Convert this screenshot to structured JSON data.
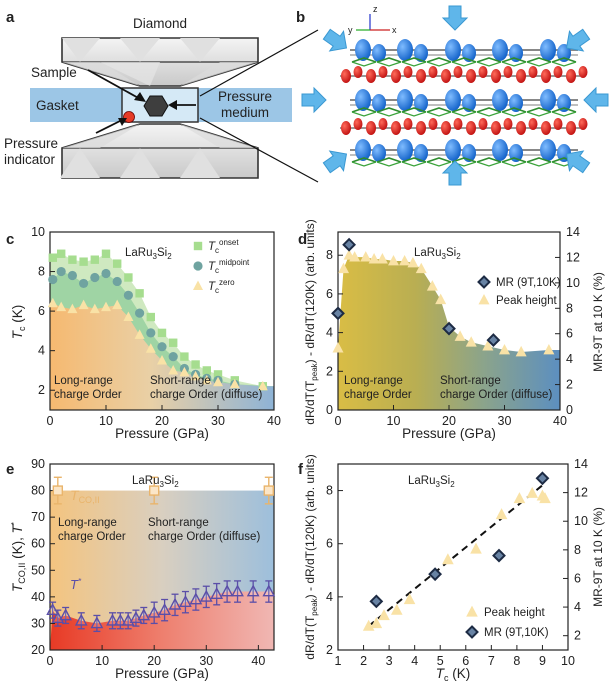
{
  "colors": {
    "orange": "#f4b06a",
    "green": "#8fcf8f",
    "teal": "#7da9a9",
    "blue": "#6f9cc8",
    "yellow_tri": "#f7dfa0",
    "diamond": "#5b7594",
    "purple": "#5a4ea8",
    "gold_square": "#e9b46b",
    "gasket": "#9cc6e6",
    "red": "#e03a2a"
  },
  "panel_a": {
    "label": "a",
    "diamond": "Diamond",
    "sample": "Sample",
    "gasket": "Gasket",
    "pressure_medium_line1": "Pressure",
    "pressure_medium_line2": "medium",
    "indicator_line1": "Pressure",
    "indicator_line2": "indicator"
  },
  "panel_b": {
    "label": "b",
    "axis_z": "z",
    "axis_y": "y",
    "axis_x": "x"
  },
  "chart_data": [
    {
      "panel": "c",
      "type": "scatter",
      "compound": "LaRu3Si2",
      "xlabel": "Pressure (GPa)",
      "ylabel": "Tc (K)",
      "xlim": [
        0,
        40
      ],
      "ylim": [
        1,
        10
      ],
      "xticks": [
        0,
        10,
        20,
        30,
        40
      ],
      "yticks": [
        2,
        4,
        6,
        8,
        10
      ],
      "annotation_left_1": "Long-range",
      "annotation_left_2": "charge Order",
      "annotation_right_1": "Short-range",
      "annotation_right_2": "charge Order (diffuse)",
      "series": [
        {
          "name": "Tc onset",
          "sub": "onset",
          "marker": "square",
          "x": [
            0.5,
            2,
            4,
            6,
            8,
            10,
            12,
            14,
            16,
            18,
            20,
            22,
            24,
            26,
            28,
            30,
            33,
            38
          ],
          "y": [
            8.7,
            8.9,
            8.6,
            8.5,
            8.6,
            8.9,
            8.4,
            7.7,
            6.9,
            5.7,
            4.9,
            4.4,
            3.7,
            3.3,
            3.0,
            2.8,
            2.5,
            2.2
          ]
        },
        {
          "name": "Tc midpoint",
          "sub": "midpoint",
          "marker": "circle",
          "x": [
            0.5,
            2,
            4,
            6,
            8,
            10,
            12,
            14,
            16,
            18,
            20,
            22,
            24,
            26,
            28,
            30,
            33
          ],
          "y": [
            7.6,
            8.0,
            7.8,
            7.4,
            7.7,
            7.9,
            7.5,
            6.8,
            5.9,
            4.9,
            4.2,
            3.7,
            3.1,
            2.8,
            2.6,
            2.5,
            2.3
          ]
        },
        {
          "name": "Tc zero",
          "sub": "zero",
          "marker": "triangle",
          "x": [
            0.5,
            2,
            4,
            6,
            8,
            10,
            12,
            14,
            16,
            18,
            20,
            22,
            24,
            26,
            28,
            30,
            33,
            38
          ],
          "y": [
            6.4,
            6.2,
            6.1,
            6.3,
            6.1,
            6.2,
            6.3,
            5.7,
            4.8,
            4.1,
            3.5,
            3.0,
            2.9,
            2.7,
            2.5,
            2.4,
            2.3,
            2.2
          ]
        }
      ]
    },
    {
      "panel": "d",
      "type": "scatter",
      "compound": "LaRu3Si2",
      "xlabel": "Pressure (GPa)",
      "ylabel": "dR/dT(Tpeak) - dR/dT(120K) (arb. units)",
      "y2label": "MR-9T at 10 K (%)",
      "xlim": [
        0,
        40
      ],
      "ylim": [
        0,
        9.2
      ],
      "y2lim": [
        0,
        14
      ],
      "xticks": [
        0,
        10,
        20,
        30,
        40
      ],
      "yticks": [
        0,
        2,
        4,
        6,
        8
      ],
      "y2ticks": [
        0,
        2,
        4,
        6,
        8,
        10,
        12,
        14
      ],
      "annotation_left_1": "Long-range",
      "annotation_left_2": "charge Order",
      "annotation_right_1": "Short-range",
      "annotation_right_2": "charge Order (diffuse)",
      "series": [
        {
          "name": "MR (9T,10K)",
          "marker": "diamond",
          "axis": "right",
          "x": [
            0,
            2,
            20,
            28
          ],
          "y": [
            7.6,
            13.0,
            6.4,
            5.5
          ]
        },
        {
          "name": "Peak height",
          "marker": "triangle",
          "axis": "left",
          "x": [
            0,
            1,
            2,
            3,
            5,
            6.5,
            8,
            10,
            12,
            13.5,
            15,
            17,
            18.5,
            20,
            22,
            24,
            27,
            30,
            33,
            38
          ],
          "y": [
            3.2,
            7.3,
            8.0,
            7.9,
            7.9,
            7.8,
            7.8,
            7.7,
            7.7,
            7.6,
            7.3,
            6.4,
            5.7,
            4.3,
            3.8,
            3.5,
            3.3,
            3.1,
            3.0,
            3.1
          ]
        }
      ]
    },
    {
      "panel": "e",
      "type": "scatter",
      "compound": "LaRu3Si2",
      "xlabel": "Pressure (GPa)",
      "ylabel": "TCO,II (K), T* (K)",
      "xlim": [
        0,
        43
      ],
      "ylim": [
        20,
        90
      ],
      "xticks": [
        0,
        10,
        20,
        30,
        40
      ],
      "yticks": [
        20,
        30,
        40,
        50,
        60,
        70,
        80,
        90
      ],
      "label_tco": "TCO,II",
      "label_tstar": "T*",
      "annotation_left_1": "Long-range",
      "annotation_left_2": "charge Order",
      "annotation_right_1": "Short-range",
      "annotation_right_2": "charge Order (diffuse)",
      "series": [
        {
          "name": "TCO,II",
          "marker": "square",
          "x": [
            1.5,
            20,
            42
          ],
          "y": [
            80,
            80,
            80
          ],
          "err": [
            5,
            5,
            5
          ]
        },
        {
          "name": "T*",
          "marker": "triangle-up-open",
          "x": [
            0.5,
            1.5,
            3,
            6,
            9,
            12,
            13.5,
            15,
            16.5,
            18,
            20,
            22,
            24,
            26,
            28,
            30,
            32,
            34,
            36,
            39,
            42
          ],
          "y": [
            35,
            32,
            33,
            31,
            30,
            31,
            31,
            31,
            32,
            33,
            34,
            35,
            37,
            38,
            39,
            40,
            41,
            42,
            42,
            42,
            42
          ],
          "err": [
            3,
            3,
            3,
            3,
            3,
            3,
            3,
            3,
            3,
            3,
            4,
            4,
            4,
            4,
            4,
            4,
            4,
            4,
            4,
            4,
            4
          ]
        }
      ]
    },
    {
      "panel": "f",
      "type": "scatter",
      "compound": "LaRu3Si2",
      "xlabel": "Tc (K)",
      "ylabel": "dR/dT(Tpeak) - dR/dT(120K) (arb. units)",
      "y2label": "MR-9T at 10 K (%)",
      "xlim": [
        1,
        10
      ],
      "ylim": [
        2,
        9
      ],
      "y2lim": [
        1,
        14
      ],
      "xticks": [
        1,
        2,
        3,
        4,
        5,
        6,
        7,
        8,
        9,
        10
      ],
      "yticks": [
        2,
        4,
        6,
        8
      ],
      "y2ticks": [
        2,
        4,
        6,
        8,
        10,
        12,
        14
      ],
      "fit_line": {
        "x": [
          2.2,
          9.0
        ],
        "y": [
          2.9,
          8.2
        ]
      },
      "series": [
        {
          "name": "Peak height",
          "marker": "triangle",
          "axis": "left",
          "x": [
            2.2,
            2.5,
            2.8,
            3.3,
            3.8,
            5.3,
            6.4,
            7.4,
            8.1,
            8.6,
            9.0,
            9.1
          ],
          "y": [
            2.9,
            3.0,
            3.3,
            3.5,
            3.9,
            5.4,
            5.8,
            7.1,
            7.7,
            7.9,
            7.8,
            7.7
          ]
        },
        {
          "name": "MR (9T,10K)",
          "marker": "diamond",
          "axis": "right",
          "x": [
            2.5,
            4.8,
            7.3,
            9.0
          ],
          "y": [
            4.4,
            6.3,
            7.6,
            13.0
          ]
        }
      ]
    }
  ]
}
